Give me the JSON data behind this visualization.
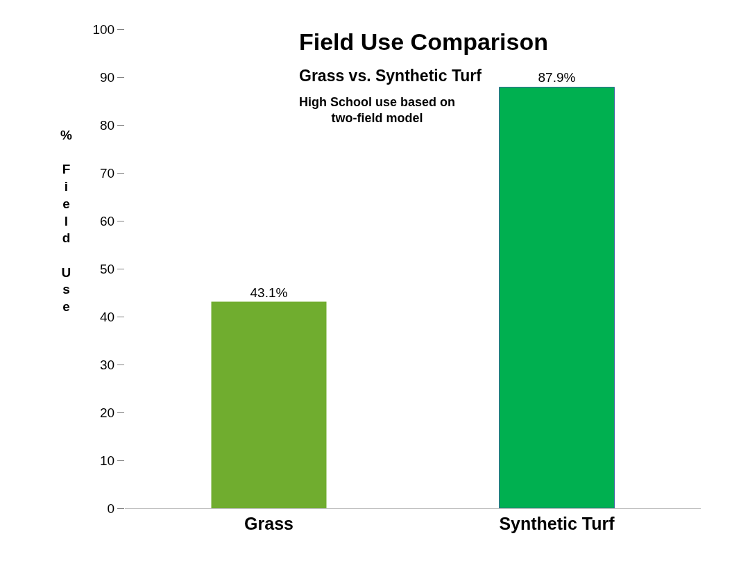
{
  "chart_data": {
    "type": "bar",
    "title": "Field Use Comparison",
    "subtitle": "Grass vs. Synthetic Turf",
    "ylabel": "% Field Use",
    "annotations": [
      "High School use based on\ntwo-field model"
    ],
    "categories": [
      "Grass",
      "Synthetic Turf"
    ],
    "values": [
      43.1,
      87.9
    ],
    "colors": [
      "#70ad2f",
      "#00b050"
    ],
    "value_labels": [
      "43.1%",
      "87.9%"
    ],
    "ylim": [
      0,
      100
    ],
    "yticks": [
      0,
      10,
      20,
      30,
      40,
      50,
      60,
      70,
      80,
      90,
      100
    ]
  }
}
